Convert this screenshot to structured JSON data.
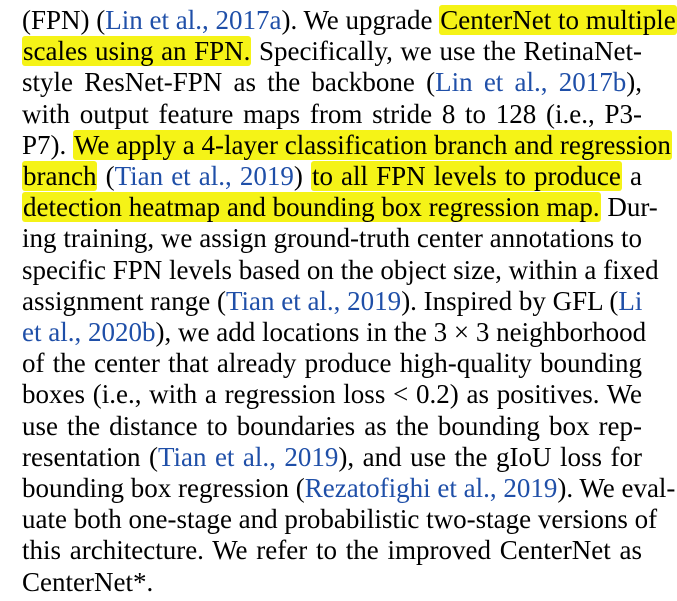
{
  "colors": {
    "text": "#000000",
    "citation": "#1f4fa8",
    "highlight": "#f5f317",
    "background": "#ffffff"
  },
  "lines": [
    {
      "segments": [
        {
          "text": "(FPN) ("
        },
        {
          "text": "Lin et al., 2017a",
          "cite": true
        },
        {
          "text": "). We upgrade "
        },
        {
          "text": "CenterNet to multiple",
          "hl": true
        }
      ]
    },
    {
      "segments": [
        {
          "text": "scales using an FPN.",
          "hl": true
        },
        {
          "text": " Specifically, we use the RetinaNet-"
        }
      ]
    },
    {
      "segments": [
        {
          "text": "style ResNet-FPN as the backbone ("
        },
        {
          "text": "Lin et al., 2017b",
          "cite": true
        },
        {
          "text": "),"
        }
      ]
    },
    {
      "segments": [
        {
          "text": "with output feature maps from stride 8 to 128 (i.e., P3-"
        }
      ]
    },
    {
      "segments": [
        {
          "text": "P7). "
        },
        {
          "text": "We apply a 4-layer classification branch and regression",
          "hl": true
        }
      ]
    },
    {
      "segments": [
        {
          "text": "branch",
          "hl": true
        },
        {
          "text": " ("
        },
        {
          "text": "Tian et al., 2019",
          "cite": true
        },
        {
          "text": ") "
        },
        {
          "text": "to all FPN levels to produce",
          "hl": true
        },
        {
          "text": " a"
        }
      ]
    },
    {
      "segments": [
        {
          "text": "detection heatmap and bounding box regression map.",
          "hl": true
        },
        {
          "text": " Dur-"
        }
      ]
    },
    {
      "segments": [
        {
          "text": "ing training, we assign ground-truth center annotations to"
        }
      ]
    },
    {
      "segments": [
        {
          "text": "specific FPN levels based on the object size, within a fixed"
        }
      ]
    },
    {
      "segments": [
        {
          "text": "assignment range ("
        },
        {
          "text": "Tian et al., 2019",
          "cite": true
        },
        {
          "text": "). Inspired by GFL ("
        },
        {
          "text": "Li",
          "cite": true
        }
      ]
    },
    {
      "segments": [
        {
          "text": "et al., 2020b",
          "cite": true
        },
        {
          "text": "), we add locations in the 3 × 3 neighborhood"
        }
      ]
    },
    {
      "segments": [
        {
          "text": "of the center that already produce high-quality bounding"
        }
      ]
    },
    {
      "segments": [
        {
          "text": "boxes (i.e., with a regression loss < 0.2) as positives. We"
        }
      ]
    },
    {
      "segments": [
        {
          "text": "use the distance to boundaries as the bounding box rep-"
        }
      ]
    },
    {
      "segments": [
        {
          "text": "resentation ("
        },
        {
          "text": "Tian et al., 2019",
          "cite": true
        },
        {
          "text": "), and use the gIoU loss for"
        }
      ]
    },
    {
      "segments": [
        {
          "text": "bounding box regression ("
        },
        {
          "text": "Rezatofighi et al., 2019",
          "cite": true
        },
        {
          "text": "). We eval-"
        }
      ]
    },
    {
      "segments": [
        {
          "text": "uate both one-stage and probabilistic two-stage versions of"
        }
      ]
    },
    {
      "segments": [
        {
          "text": "this architecture. We refer to the improved CenterNet as"
        }
      ]
    },
    {
      "segments": [
        {
          "text": "CenterNet*."
        }
      ]
    }
  ]
}
